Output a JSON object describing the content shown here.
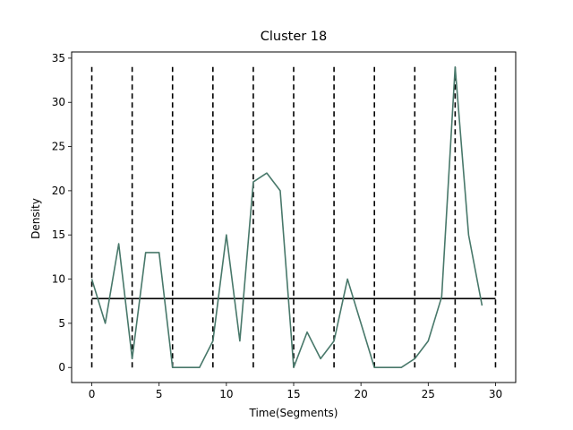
{
  "chart_data": {
    "type": "line",
    "title": "Cluster 18",
    "xlabel": "Time(Segments)",
    "ylabel": "Density",
    "xlim": [
      -1.5,
      31.5
    ],
    "ylim": [
      -1.7,
      35.7
    ],
    "xticks": [
      0,
      5,
      10,
      15,
      20,
      25,
      30
    ],
    "yticks": [
      0,
      5,
      10,
      15,
      20,
      25,
      30,
      35
    ],
    "grid": false,
    "series": [
      {
        "color": "#48786a",
        "x": [
          0,
          1,
          2,
          3,
          4,
          5,
          6,
          7,
          8,
          9,
          10,
          11,
          12,
          13,
          14,
          15,
          16,
          17,
          18,
          19,
          20,
          21,
          22,
          23,
          24,
          25,
          26,
          27,
          28,
          29
        ],
        "values": [
          10,
          5,
          14,
          1,
          13,
          13,
          0,
          0,
          0,
          3,
          15,
          3,
          21,
          22,
          20,
          0,
          4,
          1,
          3,
          10,
          5,
          0,
          0,
          0,
          1,
          3,
          8,
          34,
          15,
          7
        ]
      }
    ],
    "segment_boundaries": {
      "x": [
        0,
        3,
        6,
        9,
        12,
        15,
        18,
        21,
        24,
        27,
        30
      ],
      "y_range": [
        0,
        34
      ],
      "color": "#000000",
      "style": "dashed"
    },
    "mean_line": {
      "y": 7.8,
      "x_range": [
        0,
        30
      ],
      "color": "#000000"
    }
  }
}
